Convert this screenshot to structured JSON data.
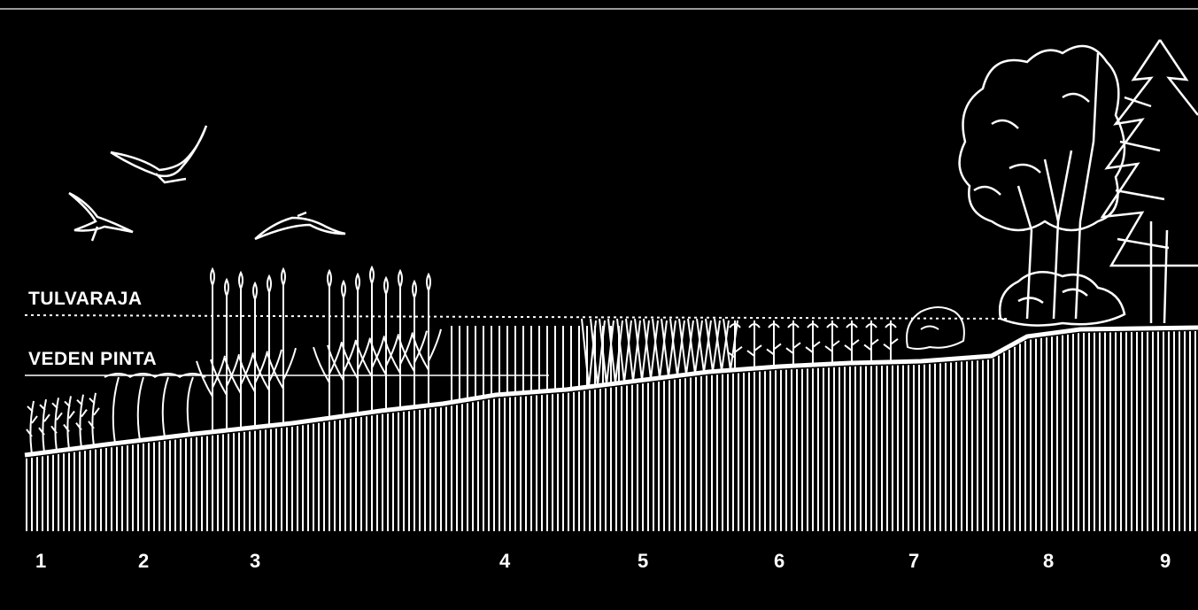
{
  "diagram": {
    "levels": {
      "flood_limit": "TULVARAJA",
      "water_surface": "VEDEN PINTA"
    },
    "zones": [
      "1",
      "2",
      "3",
      "4",
      "5",
      "6",
      "7",
      "8",
      "9"
    ],
    "colors": {
      "background": "#000000",
      "lines": "#ffffff"
    },
    "icons": [
      "bird-icon",
      "reed-icon",
      "bulrush-icon",
      "water-plant-icon",
      "shrub-icon",
      "deciduous-tree-icon",
      "spruce-tree-icon"
    ]
  }
}
